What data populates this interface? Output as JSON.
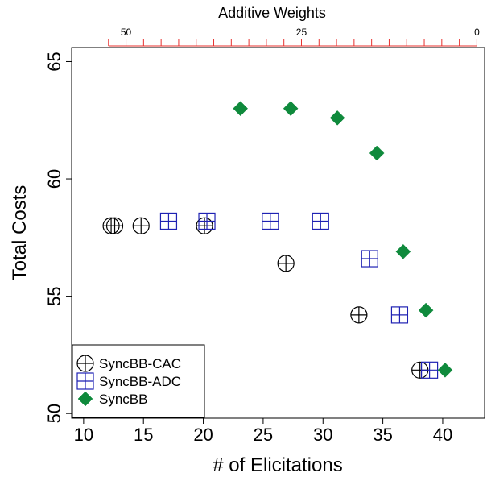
{
  "chart_data": {
    "type": "scatter",
    "title": "",
    "xlabel": "# of Elicitations",
    "ylabel": "Total Costs",
    "top_axis_label": "Additive Weights",
    "xlim": [
      9,
      43.5
    ],
    "ylim": [
      49.8,
      65.6
    ],
    "x_ticks": [
      10,
      15,
      20,
      25,
      30,
      35,
      40
    ],
    "y_ticks": [
      50,
      55,
      60,
      65
    ],
    "top_axis": {
      "range_at_left": 57.75,
      "range_at_right": -1.1,
      "labeled_ticks": [
        50,
        25,
        0
      ],
      "minor_tick_step": 2.5,
      "color": "#e8302e"
    },
    "legend": {
      "placement": "bottom-left",
      "entries": [
        "SyncBB-CAC",
        "SyncBB-ADC",
        "SyncBB"
      ]
    },
    "grid": false,
    "series": [
      {
        "name": "SyncBB-CAC",
        "marker": "circle-plus",
        "color": "#000000",
        "points": [
          {
            "x": 12.3,
            "y": 58.0
          },
          {
            "x": 12.6,
            "y": 58.0
          },
          {
            "x": 14.8,
            "y": 58.0
          },
          {
            "x": 20.1,
            "y": 58.0
          },
          {
            "x": 26.9,
            "y": 56.4
          },
          {
            "x": 33.0,
            "y": 54.2
          },
          {
            "x": 38.1,
            "y": 51.85
          }
        ]
      },
      {
        "name": "SyncBB-ADC",
        "marker": "square-plus",
        "color": "#1f22b3",
        "points": [
          {
            "x": 17.1,
            "y": 58.2
          },
          {
            "x": 20.3,
            "y": 58.2
          },
          {
            "x": 25.6,
            "y": 58.2
          },
          {
            "x": 29.8,
            "y": 58.2
          },
          {
            "x": 33.9,
            "y": 56.6
          },
          {
            "x": 36.4,
            "y": 54.2
          },
          {
            "x": 38.9,
            "y": 51.85
          }
        ]
      },
      {
        "name": "SyncBB",
        "marker": "diamond",
        "color": "#0f8a3c",
        "points": [
          {
            "x": 23.1,
            "y": 63.0
          },
          {
            "x": 27.3,
            "y": 63.0
          },
          {
            "x": 31.2,
            "y": 62.6
          },
          {
            "x": 34.5,
            "y": 61.1
          },
          {
            "x": 36.7,
            "y": 56.9
          },
          {
            "x": 38.6,
            "y": 54.4
          },
          {
            "x": 40.2,
            "y": 51.85
          }
        ]
      }
    ]
  }
}
